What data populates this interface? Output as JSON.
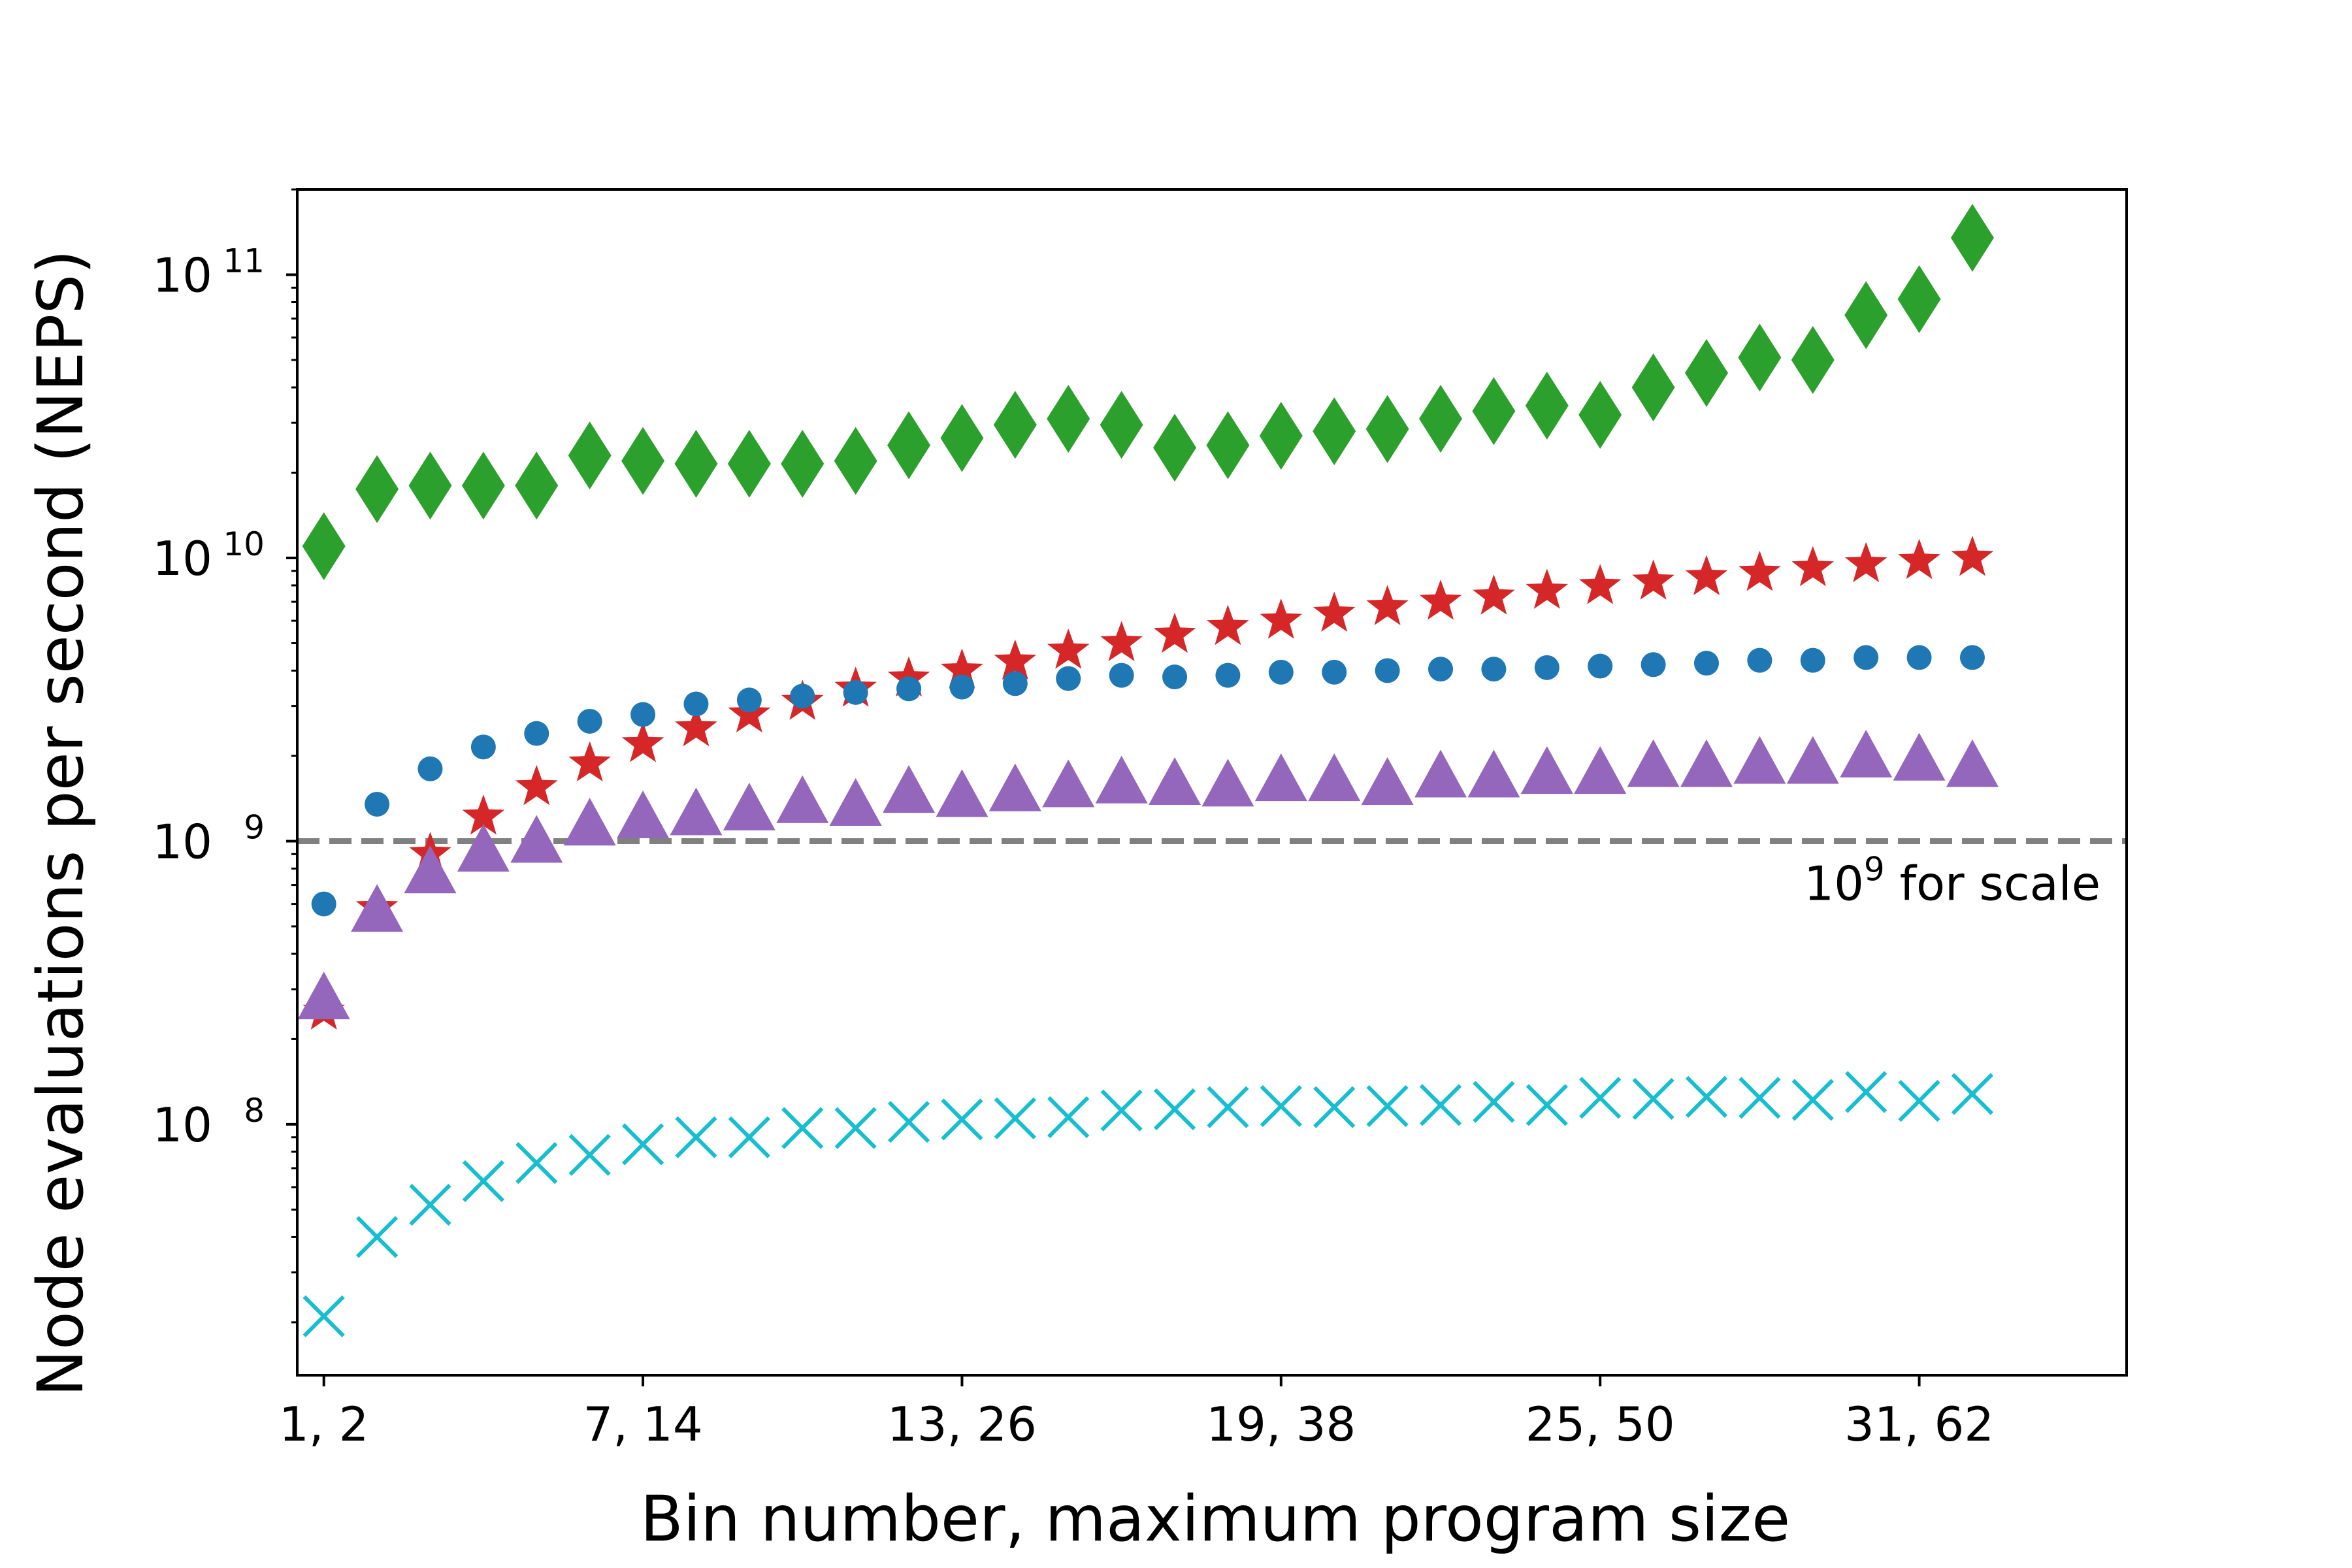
{
  "chart_data": {
    "type": "scatter",
    "title": "",
    "xlabel": "Bin number, maximum program size",
    "ylabel": "Node evaluations per second (NEPS)",
    "xlim": [
      0.5,
      34.9
    ],
    "ylim": [
      13000000,
      200000000000
    ],
    "yscale": "log",
    "grid": false,
    "legend": "none",
    "x": [
      1,
      2,
      3,
      4,
      5,
      6,
      7,
      8,
      9,
      10,
      11,
      12,
      13,
      14,
      15,
      16,
      17,
      18,
      19,
      20,
      21,
      22,
      23,
      24,
      25,
      26,
      27,
      28,
      29,
      30,
      31,
      32
    ],
    "x_ticks": [
      {
        "value": 1,
        "label": "1, 2"
      },
      {
        "value": 7,
        "label": "7, 14"
      },
      {
        "value": 13,
        "label": "13, 26"
      },
      {
        "value": 19,
        "label": "19, 38"
      },
      {
        "value": 25,
        "label": "25, 50"
      },
      {
        "value": 31,
        "label": "31, 62"
      }
    ],
    "y_ticks": [
      {
        "value": 100000000,
        "base": "10",
        "exp": "8"
      },
      {
        "value": 1000000000,
        "base": "10",
        "exp": "9"
      },
      {
        "value": 10000000000,
        "base": "10",
        "exp": "10"
      },
      {
        "value": 100000000000,
        "base": "10",
        "exp": "11"
      }
    ],
    "reference_line": {
      "value": 1000000000,
      "color": "#808080",
      "label_base": "10",
      "label_exp": "9",
      "label_rest": " for scale"
    },
    "series": [
      {
        "marker": "diamond",
        "color": "#2ca02c",
        "values": [
          11000000000,
          17500000000,
          18000000000,
          18000000000,
          18000000000,
          23000000000,
          22000000000,
          21500000000,
          21500000000,
          21500000000,
          22000000000,
          25000000000,
          26500000000,
          29500000000,
          31000000000,
          29500000000,
          24500000000,
          25000000000,
          27000000000,
          28000000000,
          28500000000,
          31000000000,
          33000000000,
          34500000000,
          32000000000,
          40000000000,
          45000000000,
          51000000000,
          50000000000,
          72000000000,
          82000000000,
          135000000000
        ]
      },
      {
        "marker": "star",
        "color": "#d62728",
        "values": [
          250000000,
          580000000,
          900000000,
          1220000000,
          1550000000,
          1880000000,
          2200000000,
          2500000000,
          2800000000,
          3100000000,
          3450000000,
          3750000000,
          4000000000,
          4300000000,
          4700000000,
          5000000000,
          5350000000,
          5700000000,
          6000000000,
          6350000000,
          6700000000,
          7000000000,
          7300000000,
          7650000000,
          7950000000,
          8250000000,
          8550000000,
          8850000000,
          9200000000,
          9500000000,
          9750000000,
          10000000000
        ]
      },
      {
        "marker": "circle",
        "color": "#1f77b4",
        "values": [
          600000000,
          1350000000,
          1800000000,
          2150000000,
          2400000000,
          2650000000,
          2800000000,
          3050000000,
          3150000000,
          3250000000,
          3350000000,
          3450000000,
          3500000000,
          3600000000,
          3750000000,
          3850000000,
          3800000000,
          3850000000,
          3950000000,
          3950000000,
          4000000000,
          4050000000,
          4050000000,
          4100000000,
          4150000000,
          4200000000,
          4250000000,
          4350000000,
          4350000000,
          4450000000,
          4450000000,
          4450000000
        ]
      },
      {
        "marker": "triangle",
        "color": "#9467bd",
        "values": [
          280000000,
          570000000,
          780000000,
          930000000,
          1000000000,
          1150000000,
          1220000000,
          1250000000,
          1300000000,
          1380000000,
          1350000000,
          1500000000,
          1450000000,
          1520000000,
          1570000000,
          1620000000,
          1600000000,
          1580000000,
          1650000000,
          1650000000,
          1600000000,
          1700000000,
          1700000000,
          1750000000,
          1750000000,
          1850000000,
          1850000000,
          1900000000,
          1900000000,
          2000000000,
          1950000000,
          1850000000
        ]
      },
      {
        "marker": "x",
        "color": "#17becf",
        "values": [
          21000000,
          40000000,
          52000000,
          63000000,
          73000000,
          78000000,
          85000000,
          90000000,
          90000000,
          97000000,
          97000000,
          102000000,
          104000000,
          105000000,
          106000000,
          112000000,
          113000000,
          115000000,
          116000000,
          115000000,
          116000000,
          117000000,
          120000000,
          117000000,
          124000000,
          123000000,
          125000000,
          124000000,
          122000000,
          130000000,
          121000000,
          128000000
        ]
      }
    ]
  }
}
